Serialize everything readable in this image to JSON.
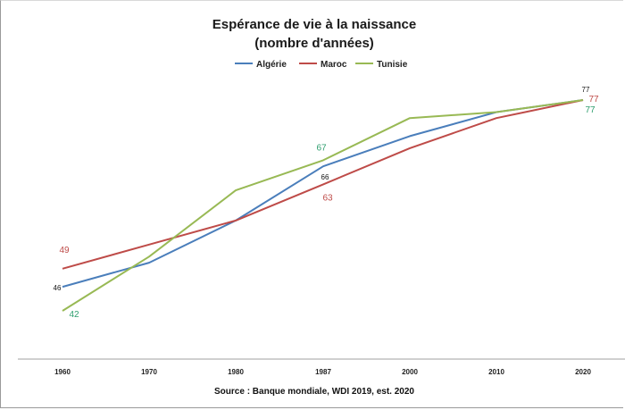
{
  "chart_data": {
    "type": "line",
    "title": "Espérance de vie à la naissance",
    "subtitle": "(nombre d'années)",
    "source": "Source : Banque mondiale,  WDI 2019, est. 2020",
    "categories": [
      "1960",
      "1970",
      "1980",
      "1987",
      "2000",
      "2010",
      "2020"
    ],
    "ylim": [
      34,
      85
    ],
    "grid": false,
    "legend_position": "top",
    "series": [
      {
        "name": "Algérie",
        "color": "#4a7ebb",
        "values": [
          46,
          50,
          57,
          66,
          71,
          75,
          77
        ]
      },
      {
        "name": "Maroc",
        "color": "#be4b48",
        "values": [
          49,
          53,
          57,
          63,
          69,
          74,
          77
        ]
      },
      {
        "name": "Tunisie",
        "color": "#98b954",
        "values": [
          42,
          51,
          62,
          67,
          74,
          75,
          77
        ]
      }
    ],
    "data_labels": [
      {
        "series": "Algérie",
        "category": "1960",
        "text": "46",
        "color": "#111111"
      },
      {
        "series": "Maroc",
        "category": "1960",
        "text": "49",
        "color": "#be4b48"
      },
      {
        "series": "Tunisie",
        "category": "1960",
        "text": "42",
        "color": "#2e9e6e"
      },
      {
        "series": "Tunisie",
        "category": "1987",
        "text": "67",
        "color": "#2e9e6e"
      },
      {
        "series": "Algérie",
        "category": "1987",
        "text": "66",
        "color": "#111111"
      },
      {
        "series": "Maroc",
        "category": "1987",
        "text": "63",
        "color": "#be4b48"
      },
      {
        "series": "Algérie",
        "category": "2020",
        "text": "77",
        "color": "#111111"
      },
      {
        "series": "Maroc",
        "category": "2020",
        "text": "77",
        "color": "#be4b48"
      },
      {
        "series": "Tunisie",
        "category": "2020",
        "text": "77",
        "color": "#2e9e6e"
      }
    ]
  }
}
